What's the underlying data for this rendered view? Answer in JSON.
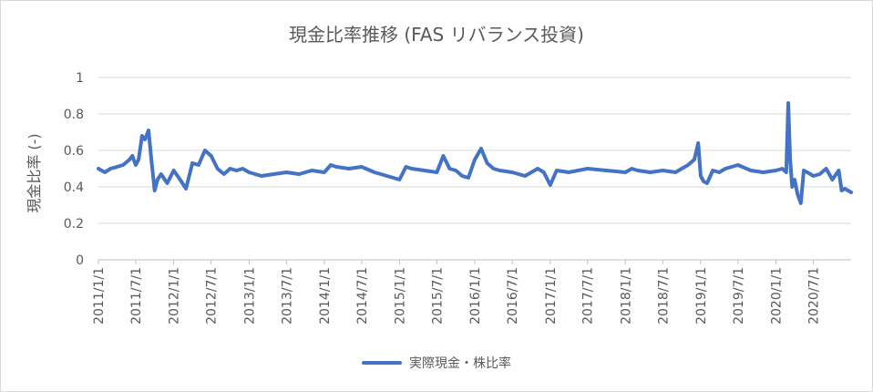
{
  "chart_data": {
    "type": "line",
    "title": "現金比率推移 (FAS リバランス投資)",
    "ylabel": "現金比率 (-)",
    "xlabel": "",
    "ylim": [
      0,
      1
    ],
    "yticks": [
      "0",
      "0.2",
      "0.4",
      "0.6",
      "0.8",
      "1"
    ],
    "xticks": [
      "2011/1/1",
      "2011/7/1",
      "2012/1/1",
      "2012/7/1",
      "2013/1/1",
      "2013/7/1",
      "2014/1/1",
      "2014/7/1",
      "2015/1/1",
      "2015/7/1",
      "2016/1/1",
      "2016/7/1",
      "2017/1/1",
      "2017/7/1",
      "2018/1/1",
      "2018/7/1",
      "2019/1/1",
      "2019/7/1",
      "2020/1/1",
      "2020/7/1"
    ],
    "grid": true,
    "legend": "bottom",
    "color": "#4472c4",
    "series": [
      {
        "name": "実際現金・株比率",
        "x": [
          "2011/1/1",
          "2011/2/1",
          "2011/3/1",
          "2011/4/1",
          "2011/5/1",
          "2011/6/1",
          "2011/6/15",
          "2011/7/1",
          "2011/7/15",
          "2011/8/1",
          "2011/8/15",
          "2011/9/1",
          "2011/9/15",
          "2011/10/1",
          "2011/10/15",
          "2011/11/1",
          "2011/12/1",
          "2012/1/1",
          "2012/2/1",
          "2012/3/1",
          "2012/4/1",
          "2012/5/1",
          "2012/6/1",
          "2012/7/1",
          "2012/8/1",
          "2012/9/1",
          "2012/10/1",
          "2012/11/1",
          "2012/12/1",
          "2013/1/1",
          "2013/3/1",
          "2013/5/1",
          "2013/7/1",
          "2013/9/1",
          "2013/11/1",
          "2014/1/1",
          "2014/2/1",
          "2014/3/1",
          "2014/5/1",
          "2014/7/1",
          "2014/9/1",
          "2014/11/1",
          "2015/1/1",
          "2015/2/1",
          "2015/3/1",
          "2015/5/1",
          "2015/7/1",
          "2015/8/1",
          "2015/9/1",
          "2015/10/1",
          "2015/11/1",
          "2015/12/1",
          "2016/1/1",
          "2016/2/1",
          "2016/3/1",
          "2016/4/1",
          "2016/5/1",
          "2016/7/1",
          "2016/9/1",
          "2016/11/1",
          "2016/12/1",
          "2017/1/1",
          "2017/2/1",
          "2017/4/1",
          "2017/7/1",
          "2017/10/1",
          "2018/1/1",
          "2018/2/1",
          "2018/3/1",
          "2018/5/1",
          "2018/7/1",
          "2018/9/1",
          "2018/10/1",
          "2018/11/1",
          "2018/12/1",
          "2018/12/20",
          "2019/1/1",
          "2019/1/15",
          "2019/2/1",
          "2019/3/1",
          "2019/4/1",
          "2019/5/1",
          "2019/7/1",
          "2019/9/1",
          "2019/11/1",
          "2020/1/1",
          "2020/2/1",
          "2020/2/20",
          "2020/3/1",
          "2020/3/10",
          "2020/3/20",
          "2020/4/1",
          "2020/4/15",
          "2020/5/1",
          "2020/5/15",
          "2020/6/1",
          "2020/7/1",
          "2020/8/1",
          "2020/9/1",
          "2020/10/1",
          "2020/11/1",
          "2020/11/15",
          "2020/12/1",
          "2020/12/31"
        ],
        "values": [
          0.5,
          0.48,
          0.5,
          0.51,
          0.52,
          0.55,
          0.57,
          0.52,
          0.55,
          0.68,
          0.66,
          0.71,
          0.55,
          0.38,
          0.44,
          0.47,
          0.42,
          0.49,
          0.44,
          0.39,
          0.53,
          0.52,
          0.6,
          0.57,
          0.5,
          0.47,
          0.5,
          0.49,
          0.5,
          0.48,
          0.46,
          0.47,
          0.48,
          0.47,
          0.49,
          0.48,
          0.52,
          0.51,
          0.5,
          0.51,
          0.48,
          0.46,
          0.44,
          0.51,
          0.5,
          0.49,
          0.48,
          0.57,
          0.5,
          0.49,
          0.46,
          0.45,
          0.55,
          0.61,
          0.53,
          0.5,
          0.49,
          0.48,
          0.46,
          0.5,
          0.48,
          0.41,
          0.49,
          0.48,
          0.5,
          0.49,
          0.48,
          0.5,
          0.49,
          0.48,
          0.49,
          0.48,
          0.5,
          0.52,
          0.55,
          0.64,
          0.46,
          0.43,
          0.42,
          0.49,
          0.48,
          0.5,
          0.52,
          0.49,
          0.48,
          0.49,
          0.5,
          0.48,
          0.86,
          0.55,
          0.4,
          0.44,
          0.36,
          0.31,
          0.49,
          0.48,
          0.46,
          0.47,
          0.5,
          0.44,
          0.49,
          0.38,
          0.39,
          0.37
        ]
      }
    ]
  }
}
